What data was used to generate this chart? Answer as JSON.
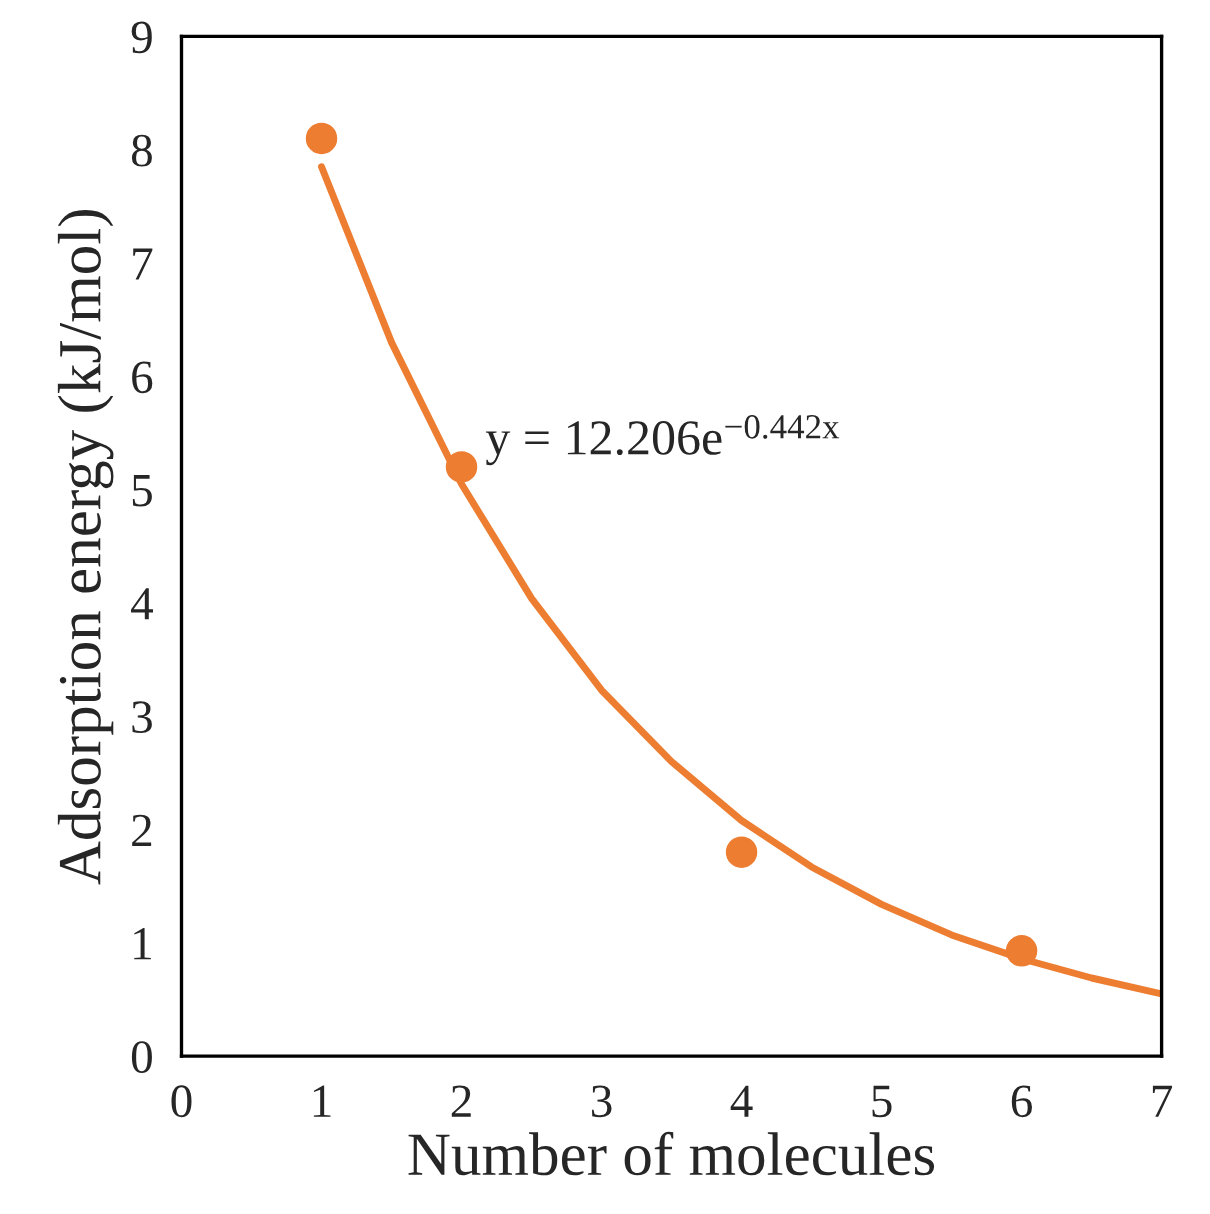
{
  "chart_data": {
    "type": "scatter",
    "xlabel": "Number of molecules",
    "ylabel": "Adsorption energy (kJ/mol)",
    "xlim": [
      0,
      7
    ],
    "ylim": [
      0,
      9
    ],
    "xticks": [
      0,
      1,
      2,
      3,
      4,
      5,
      6,
      7
    ],
    "yticks": [
      0,
      1,
      2,
      3,
      4,
      5,
      6,
      7,
      8,
      9
    ],
    "grid": false,
    "legend": false,
    "series": [
      {
        "marker": "circle",
        "color": "#ed7d31",
        "x": [
          1,
          2,
          4,
          6
        ],
        "values": [
          8.1,
          5.2,
          1.8,
          0.93
        ]
      },
      {
        "type": "line",
        "marker": "none",
        "color": "#ed7d31",
        "x": [
          1,
          1.5,
          2,
          2.5,
          3,
          3.5,
          4,
          4.5,
          5,
          5.5,
          6,
          6.5,
          7
        ],
        "values": [
          7.85,
          6.3,
          5.05,
          4.04,
          3.23,
          2.6,
          2.08,
          1.67,
          1.34,
          1.07,
          0.86,
          0.69,
          0.55
        ]
      }
    ],
    "annotations": [
      "y = 12.206e$^{−0.442x}$"
    ]
  }
}
